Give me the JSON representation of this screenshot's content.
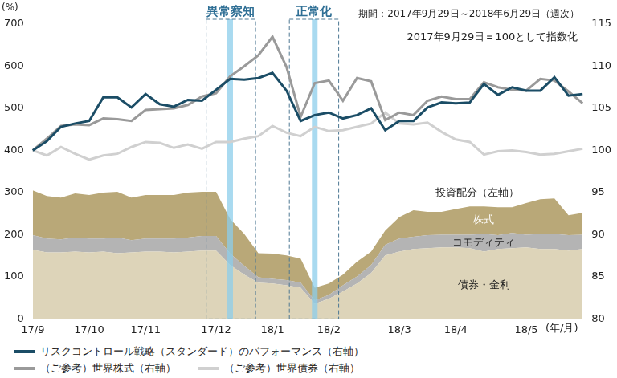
{
  "chart_data": {
    "type": "line",
    "ylabel": "(%)",
    "xlabel": "(年/月)",
    "notes": [
      "期間：2017年9月29日～2018年6月29日（週次）",
      "2017年9月29日＝100として指数化"
    ],
    "group_label": "投資配分（左軸）",
    "highlights": [
      {
        "label": "異常察知",
        "from": 12.3,
        "to": 15.8,
        "mark": 14
      },
      {
        "label": "正常化",
        "from": 18.2,
        "to": 21.7,
        "mark": 20
      }
    ],
    "categories": [
      "17/9",
      null,
      null,
      null,
      "17/10",
      null,
      null,
      null,
      "17/11",
      null,
      null,
      null,
      null,
      "17/12",
      null,
      null,
      null,
      "18/1",
      null,
      null,
      null,
      "18/2",
      null,
      null,
      null,
      null,
      "18/3",
      null,
      null,
      null,
      "18/4",
      null,
      null,
      null,
      null,
      "18/5",
      null,
      null,
      null,
      null
    ],
    "stacked": true,
    "grid": false,
    "legend": "bottom",
    "ylim": [
      0,
      700
    ],
    "yticks": [
      0,
      100,
      200,
      300,
      400,
      500,
      600,
      700
    ],
    "y2lim": [
      80,
      115
    ],
    "y2ticks": [
      80,
      85,
      90,
      95,
      100,
      105,
      110,
      115
    ],
    "series": [
      {
        "name": "債券・金利",
        "type": "area",
        "axis": "y",
        "color": "#ddd4b9",
        "values": [
          164,
          158,
          158,
          160,
          158,
          160,
          156,
          158,
          160,
          160,
          158,
          160,
          162,
          162,
          128,
          105,
          86,
          84,
          80,
          74,
          36,
          48,
          65,
          84,
          109,
          151,
          160,
          166,
          168,
          170,
          170,
          168,
          160,
          166,
          168,
          170,
          166,
          166,
          162,
          166
        ]
      },
      {
        "name": "コモディティ",
        "type": "area",
        "axis": "y",
        "color": "#b4b4b4",
        "values": [
          35,
          33,
          31,
          33,
          33,
          31,
          37,
          29,
          31,
          31,
          33,
          33,
          35,
          35,
          27,
          21,
          13,
          11,
          12,
          12,
          8,
          9,
          15,
          17,
          19,
          25,
          31,
          29,
          31,
          30,
          30,
          32,
          42,
          33,
          36,
          30,
          36,
          36,
          37,
          34
        ]
      },
      {
        "name": "株式",
        "type": "area",
        "axis": "y",
        "color": "#b9a878",
        "values": [
          106,
          101,
          99,
          105,
          103,
          109,
          109,
          101,
          103,
          103,
          103,
          107,
          105,
          105,
          82,
          76,
          57,
          60,
          59,
          57,
          30,
          27,
          25,
          35,
          32,
          34,
          51,
          63,
          55,
          54,
          61,
          67,
          65,
          66,
          61,
          75,
          82,
          84,
          47,
          52
        ]
      },
      {
        "name": "リスクコントロール戦略（スタンダード）のパフォーマンス（右軸）",
        "type": "line",
        "axis": "y2",
        "color": "#1b4d66",
        "values": [
          100,
          101.1,
          102.8,
          103.2,
          103.5,
          106.3,
          106.3,
          105.1,
          106.7,
          105.5,
          105.2,
          106,
          105.9,
          107.2,
          108.5,
          108.4,
          108.6,
          109.2,
          107.1,
          103.5,
          104.2,
          104.5,
          103.8,
          104.2,
          105,
          102.4,
          103.5,
          103.5,
          105.1,
          105.7,
          105.6,
          105.7,
          107.9,
          106.6,
          107.5,
          107.1,
          107.1,
          108.7,
          106.5,
          106.7
        ]
      },
      {
        "name": "（ご参考）世界株式（右軸）",
        "type": "line",
        "axis": "y2",
        "color": "#9a9a9a",
        "values": [
          100,
          101.4,
          102.9,
          103.1,
          103,
          103.8,
          103.7,
          103.5,
          104.8,
          104.9,
          105,
          105.4,
          106.4,
          106.8,
          108.8,
          110,
          111.3,
          113.5,
          109.9,
          104,
          108,
          108.3,
          105.9,
          108.6,
          108.2,
          103.6,
          104.5,
          104.2,
          105.9,
          106.4,
          106.1,
          106.1,
          108.1,
          107.5,
          107.2,
          107.1,
          108.5,
          108.3,
          107,
          105.6
        ]
      },
      {
        "name": "（ご参考）世界債券（右軸）",
        "type": "line",
        "axis": "y2",
        "color": "#d0d0d0",
        "values": [
          100,
          99.4,
          100.4,
          99.6,
          98.9,
          99.4,
          99.6,
          100.4,
          101,
          100.9,
          100.3,
          100.7,
          100.2,
          101,
          101,
          101.4,
          101.7,
          102.9,
          102.1,
          101.7,
          102.8,
          102.3,
          102.4,
          102.8,
          103.2,
          104.5,
          103.2,
          103.1,
          103.3,
          102.2,
          101.3,
          101,
          99.5,
          99.9,
          100,
          99.8,
          99.5,
          99.6,
          99.9,
          100.2
        ]
      }
    ]
  }
}
